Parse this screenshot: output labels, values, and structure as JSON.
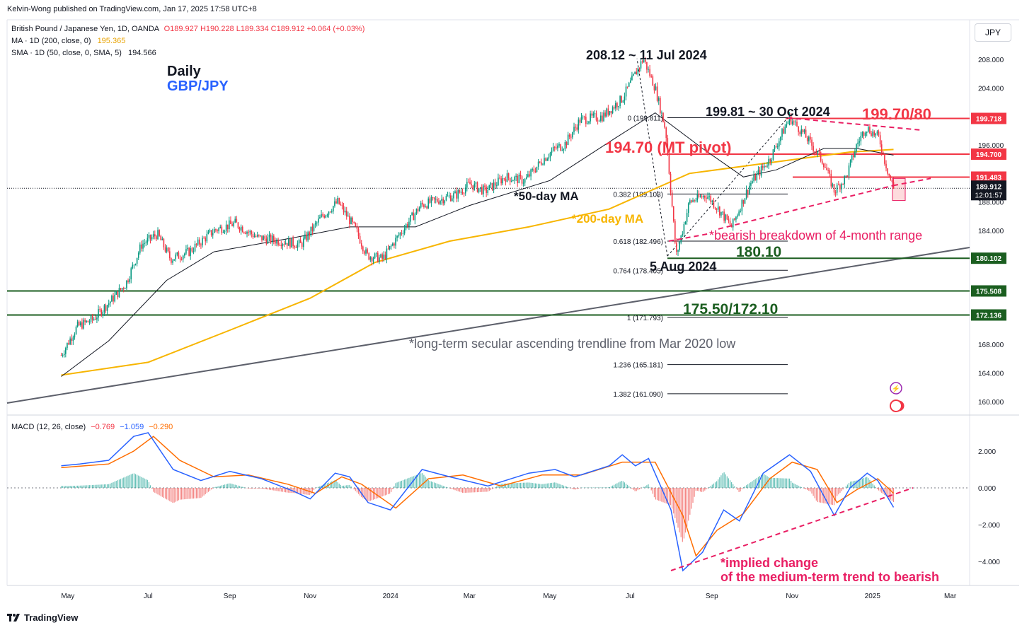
{
  "header": {
    "published": "Kelvin-Wong published on TradingView.com, Jan 17, 2025 17:58 UTC+8",
    "symbol": "British Pound / Japanese Yen, 1D, OANDA",
    "ohlc": "O189.927  H190.228  L189.334  C189.912  +0.064 (+0.03%)",
    "ma200_label": "MA · 1D (200, close, 0)",
    "ma200_value": "195.365",
    "sma50_label": "SMA · 1D (50, close, 0, SMA, 5)",
    "sma50_value": "194.566",
    "currency": "JPY"
  },
  "macd_header": {
    "label": "MACD (12, 26, close)",
    "hist": "−0.769",
    "macd": "−1.059",
    "signal": "−0.290"
  },
  "footer": {
    "brand": "TradingView"
  },
  "colors": {
    "up": "#089981",
    "down": "#f23645",
    "ma50": "#131722",
    "ma200": "#f7b500",
    "trend": "#5d606b",
    "support": "#1b5e20",
    "pink": "#e91e63",
    "red": "#f23645",
    "macd": "#2962ff",
    "signal": "#ff6d00"
  },
  "chart_data": [
    {
      "type": "candlestick",
      "title": "Daily GBP/JPY",
      "x_ticks": [
        "May",
        "Jul",
        "Sep",
        "Nov",
        "2024",
        "Mar",
        "May",
        "Jul",
        "Sep",
        "Nov",
        "2025",
        "Mar"
      ],
      "y_ticks": [
        160,
        164,
        168,
        172,
        176,
        180,
        184,
        188,
        192,
        196,
        200,
        204,
        208
      ],
      "ylim": [
        157.5,
        212.5
      ],
      "price_path": [
        [
          "2023-04-26",
          166.5
        ],
        [
          "2023-05-08",
          170.5
        ],
        [
          "2023-05-20",
          171.5
        ],
        [
          "2023-06-02",
          174.0
        ],
        [
          "2023-06-14",
          176.5
        ],
        [
          "2023-06-26",
          182.0
        ],
        [
          "2023-07-08",
          183.5
        ],
        [
          "2023-07-18",
          180.0
        ],
        [
          "2023-08-01",
          181.0
        ],
        [
          "2023-08-20",
          184.0
        ],
        [
          "2023-09-05",
          185.0
        ],
        [
          "2023-09-22",
          183.0
        ],
        [
          "2023-10-10",
          182.5
        ],
        [
          "2023-10-25",
          182.0
        ],
        [
          "2023-11-10",
          186.0
        ],
        [
          "2023-11-22",
          188.0
        ],
        [
          "2023-12-06",
          184.0
        ],
        [
          "2023-12-14",
          180.5
        ],
        [
          "2023-12-26",
          180.0
        ],
        [
          "2024-01-08",
          183.5
        ],
        [
          "2024-01-24",
          187.5
        ],
        [
          "2024-02-10",
          188.5
        ],
        [
          "2024-02-20",
          189.0
        ],
        [
          "2024-03-01",
          190.5
        ],
        [
          "2024-03-13",
          189.5
        ],
        [
          "2024-03-28",
          191.5
        ],
        [
          "2024-04-12",
          191.0
        ],
        [
          "2024-04-26",
          194.0
        ],
        [
          "2024-05-05",
          195.5
        ],
        [
          "2024-05-12",
          196.0
        ],
        [
          "2024-05-24",
          199.5
        ],
        [
          "2024-06-10",
          200.0
        ],
        [
          "2024-06-25",
          202.5
        ],
        [
          "2024-07-11",
          208.1
        ],
        [
          "2024-07-20",
          204.0
        ],
        [
          "2024-07-28",
          198.0
        ],
        [
          "2024-08-05",
          180.4
        ],
        [
          "2024-08-15",
          188.0
        ],
        [
          "2024-08-28",
          189.0
        ],
        [
          "2024-09-06",
          187.0
        ],
        [
          "2024-09-16",
          184.5
        ],
        [
          "2024-09-30",
          190.5
        ],
        [
          "2024-10-15",
          194.0
        ],
        [
          "2024-10-30",
          199.8
        ],
        [
          "2024-11-10",
          197.5
        ],
        [
          "2024-11-25",
          193.5
        ],
        [
          "2024-12-03",
          189.5
        ],
        [
          "2024-12-12",
          191.5
        ],
        [
          "2024-12-20",
          196.0
        ],
        [
          "2024-12-27",
          198.5
        ],
        [
          "2025-01-06",
          197.0
        ],
        [
          "2025-01-10",
          194.0
        ],
        [
          "2025-01-14",
          191.5
        ],
        [
          "2025-01-17",
          189.912
        ]
      ],
      "ma200": [
        [
          "2023-04-26",
          163.7
        ],
        [
          "2023-07-01",
          165.5
        ],
        [
          "2023-09-01",
          170.0
        ],
        [
          "2023-11-01",
          174.5
        ],
        [
          "2023-12-20",
          179.5
        ],
        [
          "2024-02-15",
          182.5
        ],
        [
          "2024-04-15",
          184.5
        ],
        [
          "2024-06-15",
          187.0
        ],
        [
          "2024-08-15",
          192.0
        ],
        [
          "2024-10-15",
          193.5
        ],
        [
          "2024-12-15",
          195.0
        ],
        [
          "2025-01-17",
          195.365
        ]
      ],
      "sma50": [
        [
          "2023-04-26",
          163.5
        ],
        [
          "2023-06-01",
          168.5
        ],
        [
          "2023-07-15",
          177.0
        ],
        [
          "2023-08-20",
          181.0
        ],
        [
          "2023-10-20",
          183.0
        ],
        [
          "2023-12-01",
          184.5
        ],
        [
          "2024-01-20",
          184.5
        ],
        [
          "2024-03-01",
          187.5
        ],
        [
          "2024-05-01",
          191.0
        ],
        [
          "2024-06-20",
          197.0
        ],
        [
          "2024-07-20",
          200.5
        ],
        [
          "2024-08-25",
          195.5
        ],
        [
          "2024-09-25",
          191.5
        ],
        [
          "2024-10-20",
          192.5
        ],
        [
          "2024-11-25",
          195.5
        ],
        [
          "2024-12-20",
          195.5
        ],
        [
          "2025-01-17",
          194.566
        ]
      ],
      "last_price": "189.912",
      "countdown": "12:01:57",
      "price_labels": [
        {
          "text": "199.718",
          "value": 199.718,
          "bg": "#f23645"
        },
        {
          "text": "194.700",
          "value": 194.7,
          "bg": "#f23645"
        },
        {
          "text": "191.483",
          "value": 191.483,
          "bg": "#f23645"
        },
        {
          "text": "180.102",
          "value": 180.102,
          "bg": "#1b5e20"
        },
        {
          "text": "175.508",
          "value": 175.508,
          "bg": "#1b5e20"
        },
        {
          "text": "172.136",
          "value": 172.136,
          "bg": "#1b5e20"
        }
      ],
      "fibonacci": [
        {
          "ratio": "0",
          "price": "199.811",
          "value": 199.811
        },
        {
          "ratio": "0.382",
          "price": "189.108",
          "value": 189.108
        },
        {
          "ratio": "0.618",
          "price": "182.496",
          "value": 182.496
        },
        {
          "ratio": "0.764",
          "price": "178.405",
          "value": 178.405
        },
        {
          "ratio": "1",
          "price": "171.793",
          "value": 171.793
        },
        {
          "ratio": "1.236",
          "price": "165.181",
          "value": 165.181
        },
        {
          "ratio": "1.382",
          "price": "161.090",
          "value": 161.09
        }
      ],
      "annotations": {
        "daily": "Daily",
        "pair": "GBP/JPY",
        "high": "208.12 ~ 11 Jul 2024",
        "oct_high": "199.81 ~ 30 Oct 2024",
        "resistance": "199.70/80",
        "pivot": "194.70 (MT pivot)",
        "ma50": "*50-day MA",
        "ma200": "*200-day MA",
        "breakdown": "*bearish breakdown of 4-month range",
        "support1": "180.10",
        "aug_low": "5 Aug 2024",
        "support2": "175.50/172.10",
        "trendline": "*long-term secular ascending trendline from Mar 2020 low"
      }
    },
    {
      "type": "line",
      "title": "MACD (12, 26, close)",
      "y_ticks": [
        2.0,
        0.0,
        -2.0,
        -4.0
      ],
      "y_tick_labels": [
        "2.000",
        "0.000",
        "−2.000",
        "−4.000"
      ],
      "ylim": [
        -5.2,
        3.6
      ],
      "macd_path": [
        [
          "2023-04-26",
          1.2
        ],
        [
          "2023-05-10",
          1.3
        ],
        [
          "2023-06-01",
          1.5
        ],
        [
          "2023-06-20",
          2.8
        ],
        [
          "2023-07-01",
          3.0
        ],
        [
          "2023-07-20",
          1.0
        ],
        [
          "2023-08-10",
          0.4
        ],
        [
          "2023-09-01",
          0.9
        ],
        [
          "2023-09-25",
          0.5
        ],
        [
          "2023-10-20",
          -0.2
        ],
        [
          "2023-11-01",
          -0.6
        ],
        [
          "2023-11-20",
          0.8
        ],
        [
          "2023-12-01",
          0.6
        ],
        [
          "2023-12-15",
          -0.8
        ],
        [
          "2024-01-01",
          -1.2
        ],
        [
          "2024-01-25",
          1.0
        ],
        [
          "2024-02-15",
          0.6
        ],
        [
          "2024-03-15",
          0.1
        ],
        [
          "2024-04-15",
          0.8
        ],
        [
          "2024-05-05",
          1.0
        ],
        [
          "2024-05-20",
          0.6
        ],
        [
          "2024-06-15",
          1.2
        ],
        [
          "2024-06-25",
          1.8
        ],
        [
          "2024-07-05",
          1.2
        ],
        [
          "2024-07-15",
          1.6
        ],
        [
          "2024-08-01",
          -1.2
        ],
        [
          "2024-08-10",
          -4.5
        ],
        [
          "2024-08-25",
          -3.5
        ],
        [
          "2024-09-10",
          -1.2
        ],
        [
          "2024-09-22",
          -1.8
        ],
        [
          "2024-10-10",
          0.8
        ],
        [
          "2024-10-30",
          1.8
        ],
        [
          "2024-11-15",
          0.9
        ],
        [
          "2024-12-03",
          -1.5
        ],
        [
          "2024-12-15",
          0.0
        ],
        [
          "2024-12-28",
          0.8
        ],
        [
          "2025-01-05",
          0.4
        ],
        [
          "2025-01-17",
          -1.059
        ]
      ],
      "signal_path": [
        [
          "2023-04-26",
          1.1
        ],
        [
          "2023-06-01",
          1.3
        ],
        [
          "2023-06-20",
          2.0
        ],
        [
          "2023-07-05",
          2.8
        ],
        [
          "2023-07-25",
          1.5
        ],
        [
          "2023-08-20",
          0.6
        ],
        [
          "2023-09-15",
          0.7
        ],
        [
          "2023-10-15",
          0.2
        ],
        [
          "2023-11-05",
          -0.3
        ],
        [
          "2023-11-25",
          0.6
        ],
        [
          "2023-12-10",
          0.2
        ],
        [
          "2024-01-05",
          -1.1
        ],
        [
          "2024-01-30",
          0.5
        ],
        [
          "2024-02-25",
          0.7
        ],
        [
          "2024-03-25",
          0.1
        ],
        [
          "2024-04-25",
          0.7
        ],
        [
          "2024-05-25",
          0.7
        ],
        [
          "2024-06-25",
          1.4
        ],
        [
          "2024-07-20",
          1.4
        ],
        [
          "2024-08-10",
          -1.5
        ],
        [
          "2024-08-20",
          -3.7
        ],
        [
          "2024-09-05",
          -2.3
        ],
        [
          "2024-09-25",
          -1.4
        ],
        [
          "2024-10-15",
          0.5
        ],
        [
          "2024-11-01",
          1.4
        ],
        [
          "2024-11-20",
          1.0
        ],
        [
          "2024-12-05",
          -0.8
        ],
        [
          "2024-12-20",
          -0.1
        ],
        [
          "2025-01-05",
          0.5
        ],
        [
          "2025-01-17",
          -0.29
        ]
      ],
      "annotation": [
        "*implied change",
        "of the medium-term trend to bearish"
      ]
    }
  ]
}
